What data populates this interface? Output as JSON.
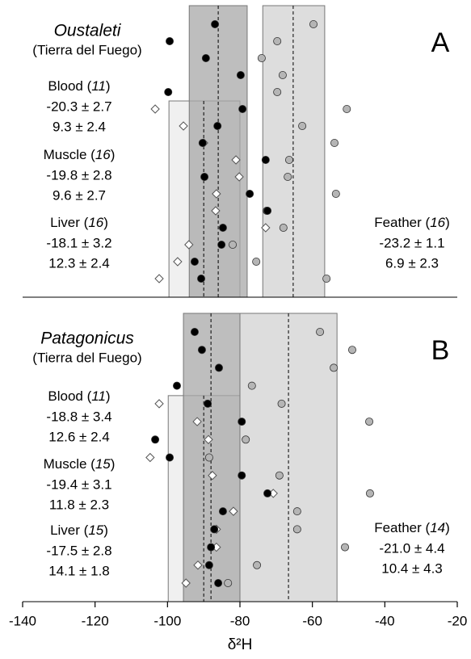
{
  "chart_data": [
    {
      "type": "scatter",
      "title": "Oustaleti",
      "subtitle": "(Tierra del Fuego)",
      "panel": "A",
      "xlim": [
        -140,
        -20
      ],
      "series": [
        {
          "color": "#dddddd",
          "marker": "circle",
          "range": [
            -73.7,
            -56.6
          ],
          "mean": -65.3,
          "x": [
            -59.7,
            -69.7,
            -74.0,
            -68.2,
            -69.7,
            -50.5,
            -62.8,
            -53.9,
            -66.4,
            -66.8,
            -53.5,
            -72.6,
            -68.0,
            -82.0,
            -75.5,
            -56.1
          ]
        },
        {
          "color": "#f0f0f0",
          "marker": "diamond",
          "range": [
            -99.6,
            -80.0
          ],
          "mean": -90.0,
          "x": [
            null,
            null,
            null,
            null,
            null,
            -103.4,
            -95.6,
            -90.0,
            -81.1,
            -80.2,
            -86.5,
            -86.7,
            -72.9,
            -94.1,
            -97.2,
            -102.3
          ]
        },
        {
          "color": "#a8a8a8",
          "marker": "dot",
          "range": [
            -94.0,
            -78.0
          ],
          "mean": -86.0,
          "x": [
            -86.9,
            -99.4,
            -89.4,
            -79.8,
            -99.8,
            -79.3,
            -86.2,
            -90.3,
            -72.9,
            -89.8,
            -77.3,
            -72.4,
            -84.7,
            -85.1,
            -92.5,
            -90.7
          ]
        }
      ],
      "notes": [
        {
          "label_parts": [
            "Blood (",
            "11",
            ")"
          ],
          "lines": [
            "-20.3 ± 2.7",
            "9.3 ± 2.4"
          ]
        },
        {
          "label_parts": [
            "Muscle (",
            "16",
            ")"
          ],
          "lines": [
            "-19.8 ± 2.8",
            "9.6 ± 2.7"
          ]
        },
        {
          "label_parts": [
            "Liver (",
            "16",
            ")"
          ],
          "lines": [
            "-18.1 ± 3.2",
            "12.3 ± 2.4"
          ]
        },
        {
          "label_parts": [
            "Feather (",
            "16",
            ")"
          ],
          "lines": [
            "-23.2 ± 1.1",
            "6.9 ± 2.3"
          ]
        }
      ]
    },
    {
      "type": "scatter",
      "title": "Patagonicus",
      "subtitle": "(Tierra del Fuego)",
      "panel": "B",
      "xlim": [
        -140,
        -20
      ],
      "xticks": [
        -140,
        -120,
        -100,
        -80,
        -60,
        -40,
        -20
      ],
      "xlabel": "δ²H",
      "series": [
        {
          "color": "#dddddd",
          "marker": "circle",
          "range": [
            -80.0,
            -53.2
          ],
          "mean": -66.6,
          "x": [
            -57.9,
            -49.0,
            -54.1,
            -76.7,
            -68.5,
            -44.3,
            -78.4,
            -88.5,
            -69.1,
            -44.1,
            -64.2,
            -64.2,
            -51.0,
            -75.3,
            -83.3
          ]
        },
        {
          "color": "#f0f0f0",
          "marker": "diamond",
          "range": [
            -99.8,
            -80.0
          ],
          "mean": -90.0,
          "x": [
            null,
            null,
            null,
            null,
            -102.3,
            -91.8,
            -88.7,
            -104.8,
            -87.6,
            -70.8,
            -81.8,
            -86.5,
            -86.5,
            -91.6,
            -94.9
          ]
        },
        {
          "color": "#a8a8a8",
          "marker": "dot",
          "range": [
            -95.6,
            -80.0
          ],
          "mean": -88.0,
          "x": [
            -92.5,
            -90.5,
            -85.8,
            -97.4,
            -88.9,
            -79.5,
            -103.4,
            -99.4,
            -79.5,
            -72.4,
            -84.7,
            -87.1,
            -88.0,
            -88.5,
            -86.0
          ]
        }
      ],
      "notes": [
        {
          "label_parts": [
            "Blood (",
            "11",
            ")"
          ],
          "lines": [
            "-18.8 ± 3.4",
            "12.6 ± 2.4"
          ]
        },
        {
          "label_parts": [
            "Muscle (",
            "15",
            ")"
          ],
          "lines": [
            "-19.4 ± 3.1",
            "11.8 ± 2.3"
          ]
        },
        {
          "label_parts": [
            "Liver (",
            "15",
            ")"
          ],
          "lines": [
            "-17.5 ± 2.8",
            "14.1 ± 1.8"
          ]
        },
        {
          "label_parts": [
            "Feather (",
            "14",
            ")"
          ],
          "lines": [
            "-21.0 ± 4.4",
            "10.4 ± 4.3"
          ]
        }
      ]
    }
  ]
}
